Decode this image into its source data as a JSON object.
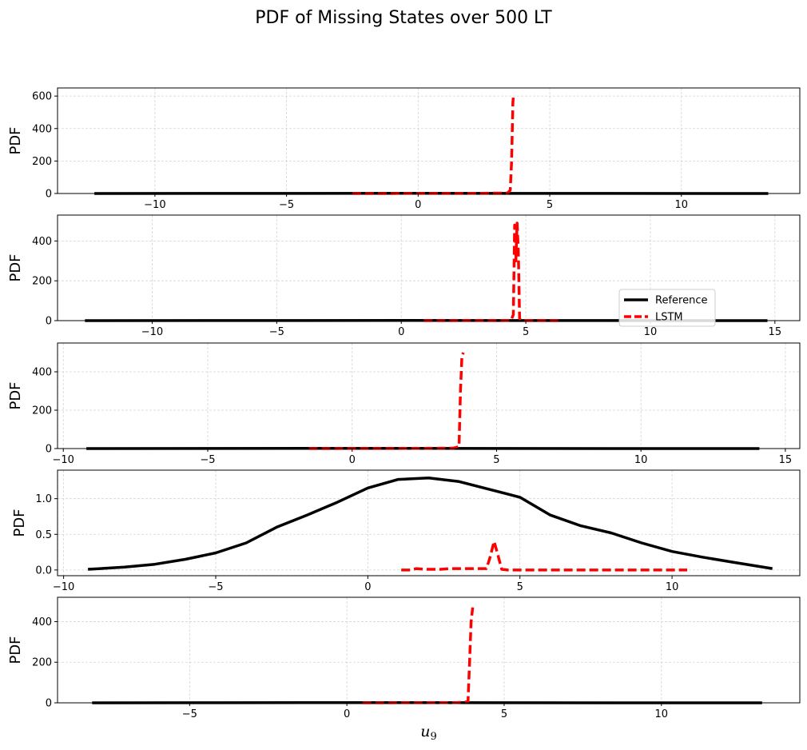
{
  "title": "PDF of Missing States over 500 LT",
  "colors": {
    "reference": "#000000",
    "lstm": "#ff0000",
    "grid": "#d4d4d4"
  },
  "chart_data": [
    {
      "type": "line",
      "ylabel": "PDF",
      "xlabel": "",
      "xlim": [
        -13.7,
        14.5
      ],
      "ylim": [
        0,
        650
      ],
      "xticks": [
        -10,
        -5,
        0,
        5,
        10
      ],
      "yticks": [
        0,
        200,
        400,
        600
      ],
      "grid": true,
      "series": [
        {
          "name": "Reference",
          "x": [
            -12.3,
            -6,
            0,
            6,
            13.3
          ],
          "y": [
            0.05,
            0.3,
            1.2,
            0.4,
            0.02
          ]
        },
        {
          "name": "LSTM",
          "x": [
            -2.5,
            0,
            2,
            3.4,
            3.5,
            3.55,
            3.6,
            3.62
          ],
          "y": [
            0,
            0.5,
            1,
            3,
            20,
            200,
            560,
            600
          ]
        }
      ]
    },
    {
      "type": "line",
      "ylabel": "PDF",
      "xlabel": "",
      "xlim": [
        -13.8,
        16.0
      ],
      "ylim": [
        0,
        530
      ],
      "xticks": [
        -10,
        -5,
        0,
        5,
        10,
        15
      ],
      "yticks": [
        0,
        200,
        400
      ],
      "grid": true,
      "legend": {
        "position": "lower-right"
      },
      "series": [
        {
          "name": "Reference",
          "x": [
            -12.7,
            -6,
            0,
            6,
            14.7
          ],
          "y": [
            0.05,
            0.3,
            1.2,
            0.4,
            0.02
          ]
        },
        {
          "name": "LSTM",
          "x": [
            0.9,
            3,
            4.4,
            4.5,
            4.55,
            4.6,
            4.65,
            4.7,
            4.75,
            4.8,
            6.3
          ],
          "y": [
            0,
            0.5,
            1,
            30,
            480,
            300,
            490,
            350,
            10,
            1,
            0
          ]
        }
      ]
    },
    {
      "type": "line",
      "ylabel": "PDF",
      "xlabel": "",
      "xlim": [
        -10.2,
        15.5
      ],
      "ylim": [
        0,
        550
      ],
      "xticks": [
        -10,
        -5,
        0,
        5,
        10,
        15
      ],
      "yticks": [
        0,
        200,
        400
      ],
      "grid": true,
      "series": [
        {
          "name": "Reference",
          "x": [
            -9.2,
            -5,
            0,
            5,
            14.1
          ],
          "y": [
            0.05,
            0.3,
            1.2,
            0.4,
            0.02
          ]
        },
        {
          "name": "LSTM",
          "x": [
            -1.5,
            0,
            2,
            3.5,
            3.7,
            3.75,
            3.8,
            3.85
          ],
          "y": [
            0,
            0.5,
            1,
            2,
            10,
            300,
            480,
            500
          ]
        }
      ]
    },
    {
      "type": "line",
      "ylabel": "PDF",
      "xlabel": "",
      "xlim": [
        -10.2,
        14.2
      ],
      "ylim": [
        -0.08,
        1.4
      ],
      "xticks": [
        -10,
        -5,
        0,
        5,
        10
      ],
      "yticks": [
        0.0,
        0.5,
        1.0
      ],
      "grid": true,
      "series": [
        {
          "name": "Reference",
          "x": [
            -9.2,
            -8,
            -7,
            -6,
            -5,
            -4,
            -3,
            -2,
            -1,
            0,
            1,
            2,
            3,
            4,
            5,
            6,
            7,
            8,
            9,
            10,
            11,
            12,
            13.3
          ],
          "y": [
            0.01,
            0.04,
            0.08,
            0.15,
            0.24,
            0.38,
            0.6,
            0.77,
            0.95,
            1.15,
            1.27,
            1.29,
            1.24,
            1.13,
            1.02,
            0.77,
            0.62,
            0.52,
            0.38,
            0.26,
            0.18,
            0.11,
            0.02
          ]
        },
        {
          "name": "LSTM",
          "x": [
            1.1,
            1.4,
            1.6,
            1.9,
            2.4,
            2.7,
            3.4,
            3.9,
            4.0,
            4.15,
            4.25,
            4.4,
            4.6,
            10.5
          ],
          "y": [
            0.0,
            0.0,
            0.02,
            0.01,
            0.01,
            0.02,
            0.02,
            0.02,
            0.15,
            0.4,
            0.25,
            0.01,
            0.0,
            0.0
          ]
        }
      ]
    },
    {
      "type": "line",
      "ylabel": "PDF",
      "xlabel": "u_9",
      "xlim": [
        -9.2,
        14.4
      ],
      "ylim": [
        0,
        520
      ],
      "xticks": [
        -5,
        0,
        5,
        10
      ],
      "yticks": [
        0,
        200,
        400
      ],
      "grid": true,
      "series": [
        {
          "name": "Reference",
          "x": [
            -8.1,
            -4,
            0,
            5,
            13.2
          ],
          "y": [
            0.05,
            0.3,
            1.2,
            0.4,
            0.02
          ]
        },
        {
          "name": "LSTM",
          "x": [
            0.5,
            2,
            3.5,
            3.85,
            3.9,
            3.95,
            4.0
          ],
          "y": [
            0,
            0.5,
            1,
            5,
            200,
            400,
            470
          ]
        }
      ]
    }
  ]
}
